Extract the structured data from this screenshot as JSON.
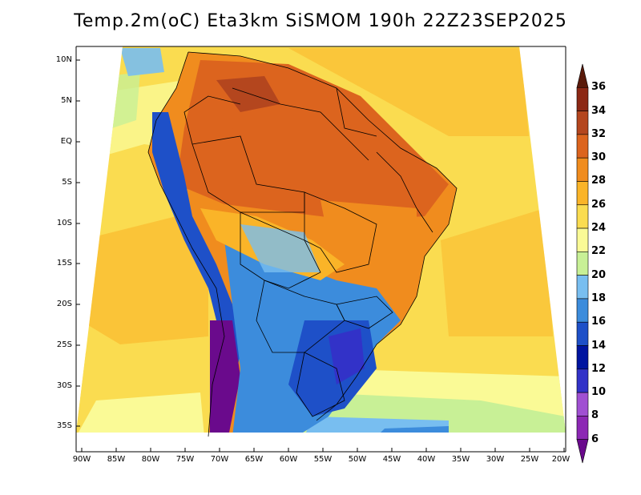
{
  "title": "Temp.2m(oC) Eta3km SiSMOM 190h 22Z23SEP2025",
  "lat_labels": [
    "10N",
    "5N",
    "EQ",
    "5S",
    "10S",
    "15S",
    "20S",
    "25S",
    "30S",
    "35S"
  ],
  "lon_labels": [
    "90W",
    "85W",
    "80W",
    "75W",
    "70W",
    "65W",
    "60W",
    "55W",
    "50W",
    "45W",
    "40W",
    "35W",
    "30W",
    "25W",
    "20W"
  ],
  "colorbar": {
    "labels": [
      "6",
      "8",
      "10",
      "12",
      "14",
      "16",
      "18",
      "20",
      "22",
      "24",
      "26",
      "28",
      "30",
      "32",
      "34",
      "36"
    ],
    "colors": [
      "#6a0a8c",
      "#8c28b4",
      "#a050d2",
      "#3232c8",
      "#0014a0",
      "#1e50c8",
      "#3c8cdc",
      "#78bef0",
      "#c8f096",
      "#fafa96",
      "#fadc50",
      "#fab428",
      "#f08c1e",
      "#dc641e",
      "#b4461e",
      "#8c2814",
      "#5a1a0a"
    ]
  }
}
